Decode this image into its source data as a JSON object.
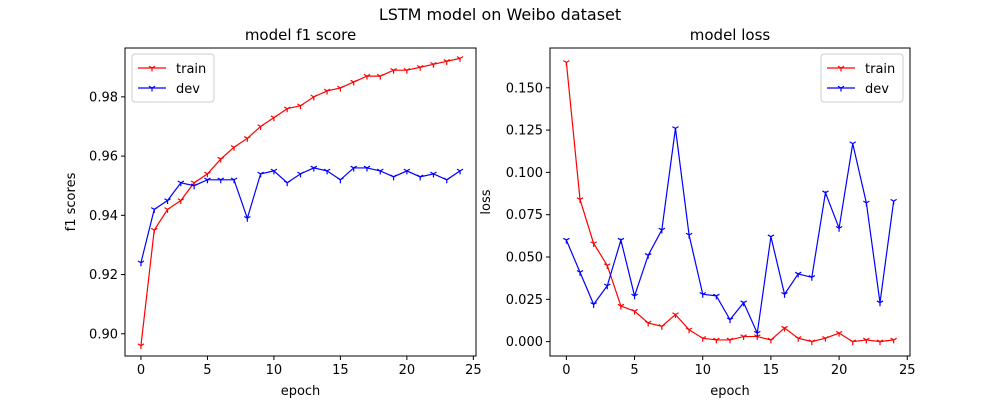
{
  "figure": {
    "suptitle": "LSTM model on Weibo dataset"
  },
  "colors": {
    "train": "#ff0000",
    "dev": "#0000ff",
    "axis": "#000000",
    "legend_border": "#cccccc"
  },
  "chart_data": [
    {
      "type": "line",
      "title": "model f1 score",
      "xlabel": "epoch",
      "ylabel": "f1 scores",
      "xlim": [
        -1.2,
        25.2
      ],
      "ylim": [
        0.8925,
        0.9965
      ],
      "xticks": [
        0,
        5,
        10,
        15,
        20,
        25
      ],
      "yticks": [
        0.9,
        0.92,
        0.94,
        0.96,
        0.98
      ],
      "ytick_labels": [
        "0.90",
        "0.92",
        "0.94",
        "0.96",
        "0.98"
      ],
      "legend": "top-left",
      "grid": false,
      "x": [
        0,
        1,
        2,
        3,
        4,
        5,
        6,
        7,
        8,
        9,
        10,
        11,
        12,
        13,
        14,
        15,
        16,
        17,
        18,
        19,
        20,
        21,
        22,
        23,
        24
      ],
      "series": [
        {
          "name": "train",
          "color": "#ff0000",
          "values": [
            0.896,
            0.935,
            0.942,
            0.945,
            0.951,
            0.954,
            0.959,
            0.963,
            0.966,
            0.97,
            0.973,
            0.976,
            0.977,
            0.98,
            0.982,
            0.983,
            0.985,
            0.987,
            0.987,
            0.989,
            0.989,
            0.99,
            0.991,
            0.992,
            0.993
          ]
        },
        {
          "name": "dev",
          "color": "#0000ff",
          "values": [
            0.924,
            0.942,
            0.945,
            0.951,
            0.95,
            0.952,
            0.952,
            0.952,
            0.939,
            0.954,
            0.955,
            0.951,
            0.954,
            0.956,
            0.955,
            0.952,
            0.956,
            0.956,
            0.955,
            0.953,
            0.955,
            0.953,
            0.954,
            0.952,
            0.955
          ]
        }
      ]
    },
    {
      "type": "line",
      "title": "model loss",
      "xlabel": "epoch",
      "ylabel": "loss",
      "xlim": [
        -1.2,
        25.2
      ],
      "ylim": [
        -0.0085,
        0.1735
      ],
      "xticks": [
        0,
        5,
        10,
        15,
        20,
        25
      ],
      "yticks": [
        0.0,
        0.025,
        0.05,
        0.075,
        0.1,
        0.125,
        0.15
      ],
      "ytick_labels": [
        "0.000",
        "0.025",
        "0.050",
        "0.075",
        "0.100",
        "0.125",
        "0.150"
      ],
      "legend": "top-right",
      "grid": false,
      "x": [
        0,
        1,
        2,
        3,
        4,
        5,
        6,
        7,
        8,
        9,
        10,
        11,
        12,
        13,
        14,
        15,
        16,
        17,
        18,
        19,
        20,
        21,
        22,
        23,
        24
      ],
      "series": [
        {
          "name": "train",
          "color": "#ff0000",
          "values": [
            0.165,
            0.084,
            0.058,
            0.045,
            0.021,
            0.018,
            0.011,
            0.009,
            0.016,
            0.007,
            0.002,
            0.001,
            0.001,
            0.003,
            0.003,
            0.001,
            0.008,
            0.002,
            0.0,
            0.002,
            0.005,
            0.0,
            0.001,
            0.0,
            0.001
          ]
        },
        {
          "name": "dev",
          "color": "#0000ff",
          "values": [
            0.06,
            0.041,
            0.022,
            0.033,
            0.06,
            0.027,
            0.051,
            0.066,
            0.126,
            0.063,
            0.028,
            0.027,
            0.013,
            0.023,
            0.005,
            0.062,
            0.028,
            0.04,
            0.038,
            0.088,
            0.067,
            0.117,
            0.082,
            0.023,
            0.083
          ]
        }
      ]
    }
  ]
}
